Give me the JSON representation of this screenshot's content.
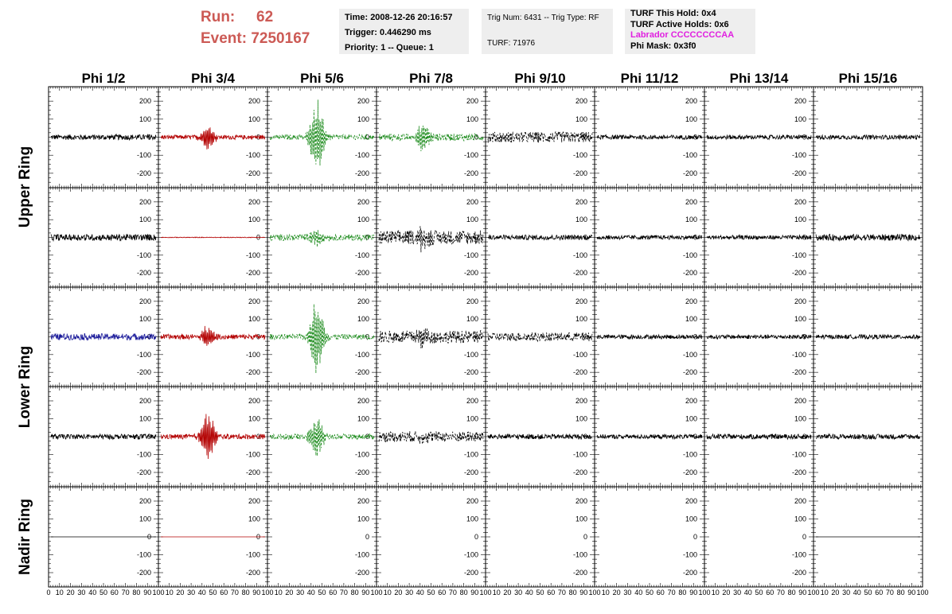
{
  "header": {
    "run_label": "Run:",
    "run_value": "62",
    "event_label": "Event:",
    "event_value": "7250167",
    "time": "Time: 2008-12-26 20:16:57",
    "trigger": "Trigger: 0.446290 ms",
    "priority": "Priority: 1 -- Queue: 1",
    "trig_num": "Trig Num: 6431 -- Trig Type: RF",
    "turf": "TURF: 71976",
    "turf_hold": "TURF This Hold: 0x4",
    "turf_active": "TURF Active Holds: 0x6",
    "labrador": "Labrador CCCCCCCCAA",
    "phi_mask": "Phi Mask: 0x3f0"
  },
  "columns": [
    "Phi 1/2",
    "Phi 3/4",
    "Phi 5/6",
    "Phi 7/8",
    "Phi 9/10",
    "Phi 11/12",
    "Phi 13/14",
    "Phi 15/16"
  ],
  "rings": [
    "Upper Ring",
    "Lower Ring",
    "Nadir Ring"
  ],
  "y_ticks": [
    "200",
    "100",
    "0",
    "-100",
    "-200"
  ],
  "x_tick_labels": [
    "0",
    "10",
    "20",
    "30",
    "40",
    "50",
    "60",
    "70",
    "80",
    "90",
    "100"
  ],
  "colors": {
    "title_red": "#cc5a55",
    "info_bg": "#eeeeee",
    "magenta": "#e020e0",
    "trace_black": "#000000",
    "trace_red": "#b30000",
    "trace_green": "#1a8a1a",
    "trace_blue": "#1a1a9a"
  },
  "chart_data": {
    "type": "line",
    "x_range": [
      0,
      100
    ],
    "y_range": [
      -280,
      280
    ],
    "panels": [
      {
        "row": 1,
        "col": 1,
        "color": "black",
        "style": "solid",
        "amplitude": 15,
        "burst": 0
      },
      {
        "row": 1,
        "col": 2,
        "color": "red",
        "style": "solid",
        "amplitude": 12,
        "burst": 70
      },
      {
        "row": 1,
        "col": 3,
        "color": "green",
        "style": "dashed",
        "amplitude": 15,
        "burst": 210
      },
      {
        "row": 1,
        "col": 4,
        "color": "green",
        "style": "dashed",
        "amplitude": 20,
        "burst": 80
      },
      {
        "row": 1,
        "col": 5,
        "color": "black",
        "style": "dashed",
        "amplitude": 30,
        "burst": 0
      },
      {
        "row": 1,
        "col": 6,
        "color": "black",
        "style": "solid",
        "amplitude": 12,
        "burst": 0
      },
      {
        "row": 1,
        "col": 7,
        "color": "black",
        "style": "solid",
        "amplitude": 12,
        "burst": 0
      },
      {
        "row": 1,
        "col": 8,
        "color": "black",
        "style": "solid",
        "amplitude": 12,
        "burst": 0
      },
      {
        "row": 2,
        "col": 1,
        "color": "black",
        "style": "solid",
        "amplitude": 18,
        "burst": 0
      },
      {
        "row": 2,
        "col": 2,
        "color": "red",
        "style": "solid",
        "amplitude": 2,
        "burst": 0
      },
      {
        "row": 2,
        "col": 3,
        "color": "green",
        "style": "dashed",
        "amplitude": 18,
        "burst": 50
      },
      {
        "row": 2,
        "col": 4,
        "color": "black",
        "style": "dashed",
        "amplitude": 40,
        "burst": 60
      },
      {
        "row": 2,
        "col": 5,
        "color": "black",
        "style": "solid",
        "amplitude": 14,
        "burst": 0
      },
      {
        "row": 2,
        "col": 6,
        "color": "black",
        "style": "solid",
        "amplitude": 12,
        "burst": 0
      },
      {
        "row": 2,
        "col": 7,
        "color": "black",
        "style": "solid",
        "amplitude": 12,
        "burst": 0
      },
      {
        "row": 2,
        "col": 8,
        "color": "black",
        "style": "solid",
        "amplitude": 18,
        "burst": 0
      },
      {
        "row": 3,
        "col": 1,
        "color": "blue",
        "style": "solid",
        "amplitude": 18,
        "burst": 0
      },
      {
        "row": 3,
        "col": 2,
        "color": "red",
        "style": "solid",
        "amplitude": 14,
        "burst": 60
      },
      {
        "row": 3,
        "col": 3,
        "color": "green",
        "style": "dashed",
        "amplitude": 15,
        "burst": 210
      },
      {
        "row": 3,
        "col": 4,
        "color": "black",
        "style": "dashed",
        "amplitude": 35,
        "burst": 50
      },
      {
        "row": 3,
        "col": 5,
        "color": "black",
        "style": "dashed",
        "amplitude": 25,
        "burst": 0
      },
      {
        "row": 3,
        "col": 6,
        "color": "black",
        "style": "solid",
        "amplitude": 12,
        "burst": 0
      },
      {
        "row": 3,
        "col": 7,
        "color": "black",
        "style": "solid",
        "amplitude": 12,
        "burst": 0
      },
      {
        "row": 3,
        "col": 8,
        "color": "black",
        "style": "solid",
        "amplitude": 12,
        "burst": 0
      },
      {
        "row": 4,
        "col": 1,
        "color": "black",
        "style": "solid",
        "amplitude": 14,
        "burst": 0
      },
      {
        "row": 4,
        "col": 2,
        "color": "red",
        "style": "solid",
        "amplitude": 14,
        "burst": 140
      },
      {
        "row": 4,
        "col": 3,
        "color": "green",
        "style": "dashed",
        "amplitude": 15,
        "burst": 120
      },
      {
        "row": 4,
        "col": 4,
        "color": "black",
        "style": "dashed",
        "amplitude": 30,
        "burst": 30
      },
      {
        "row": 4,
        "col": 5,
        "color": "black",
        "style": "solid",
        "amplitude": 14,
        "burst": 0
      },
      {
        "row": 4,
        "col": 6,
        "color": "black",
        "style": "solid",
        "amplitude": 12,
        "burst": 0
      },
      {
        "row": 4,
        "col": 7,
        "color": "black",
        "style": "solid",
        "amplitude": 14,
        "burst": 0
      },
      {
        "row": 4,
        "col": 8,
        "color": "black",
        "style": "solid",
        "amplitude": 14,
        "burst": 0
      },
      {
        "row": 5,
        "col": 1,
        "color": "black",
        "style": "solid",
        "amplitude": 0,
        "burst": 0
      },
      {
        "row": 5,
        "col": 2,
        "color": "red",
        "style": "solid",
        "amplitude": 0,
        "burst": 0
      },
      {
        "row": 5,
        "col": 3,
        "color": "none",
        "style": "solid",
        "amplitude": 0,
        "burst": 0
      },
      {
        "row": 5,
        "col": 4,
        "color": "none",
        "style": "solid",
        "amplitude": 0,
        "burst": 0
      },
      {
        "row": 5,
        "col": 5,
        "color": "none",
        "style": "solid",
        "amplitude": 0,
        "burst": 0
      },
      {
        "row": 5,
        "col": 6,
        "color": "none",
        "style": "solid",
        "amplitude": 0,
        "burst": 0
      },
      {
        "row": 5,
        "col": 7,
        "color": "none",
        "style": "solid",
        "amplitude": 0,
        "burst": 0
      },
      {
        "row": 5,
        "col": 8,
        "color": "black",
        "style": "solid",
        "amplitude": 0,
        "burst": 0
      }
    ]
  }
}
